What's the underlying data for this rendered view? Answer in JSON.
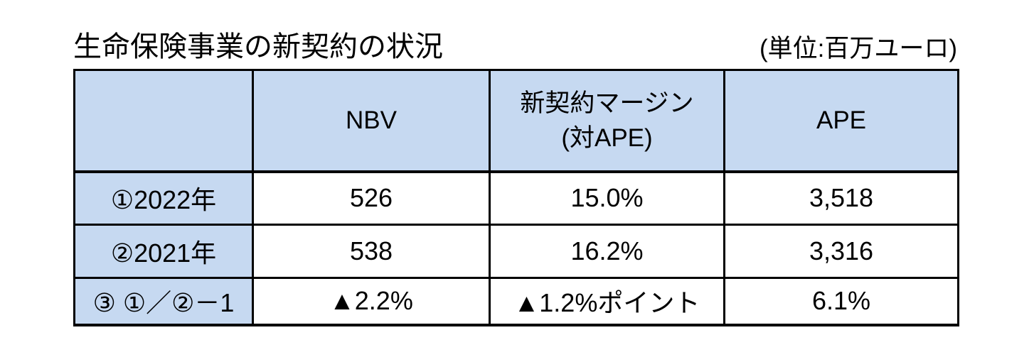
{
  "page": {
    "title": "生命保険事業の新契約の状況",
    "unit_label": "(単位:百万ユーロ)"
  },
  "colors": {
    "header_bg": "#c6d9f1",
    "border": "#000000",
    "cell_bg": "#ffffff"
  },
  "table": {
    "columns": [
      "",
      "NBV",
      "新契約マージン\n(対APE)",
      "APE"
    ],
    "rows": [
      {
        "label": "①2022年",
        "nbv": "526",
        "margin": "15.0%",
        "ape": "3,518"
      },
      {
        "label": "②2021年",
        "nbv": "538",
        "margin": "16.2%",
        "ape": "3,316"
      },
      {
        "label": "③ ①／②－1",
        "nbv": "▲2.2%",
        "margin": "▲1.2%ポイント",
        "ape": "6.1%"
      }
    ]
  }
}
